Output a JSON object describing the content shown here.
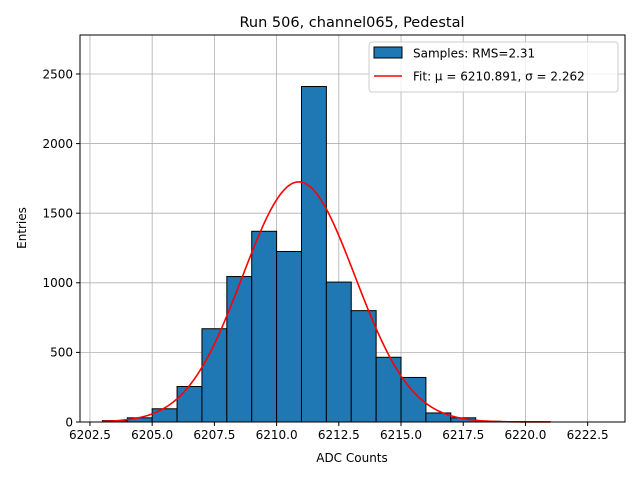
{
  "chart_data": {
    "type": "bar",
    "title": "Run 506, channel065, Pedestal",
    "xlabel": "ADC Counts",
    "ylabel": "Entries",
    "xlim": [
      6202.1,
      6224.0
    ],
    "ylim": [
      0,
      2780
    ],
    "xticks": [
      6202.5,
      6205.0,
      6207.5,
      6210.0,
      6212.5,
      6215.0,
      6217.5,
      6220.0,
      6222.5
    ],
    "xtick_labels": [
      "6202.5",
      "6205.0",
      "6207.5",
      "6210.0",
      "6212.5",
      "6215.0",
      "6217.5",
      "6220.0",
      "6222.5"
    ],
    "yticks": [
      0,
      500,
      1000,
      1500,
      2000,
      2500
    ],
    "ytick_labels": [
      "0",
      "500",
      "1000",
      "1500",
      "2000",
      "2500"
    ],
    "grid": true,
    "legend_position": "top-right",
    "histogram": {
      "name": "Samples: RMS=2.31",
      "color": "#1f77b4",
      "edgecolor": "#000000",
      "bins": [
        {
          "x0": 6203,
          "x1": 6204,
          "count": 10
        },
        {
          "x0": 6204,
          "x1": 6205,
          "count": 30
        },
        {
          "x0": 6205,
          "x1": 6206,
          "count": 95
        },
        {
          "x0": 6206,
          "x1": 6207,
          "count": 255
        },
        {
          "x0": 6207,
          "x1": 6208,
          "count": 670
        },
        {
          "x0": 6208,
          "x1": 6209,
          "count": 1045
        },
        {
          "x0": 6209,
          "x1": 6210,
          "count": 1370
        },
        {
          "x0": 6210,
          "x1": 6211,
          "count": 1225
        },
        {
          "x0": 6211,
          "x1": 6212,
          "count": 2410
        },
        {
          "x0": 6212,
          "x1": 6213,
          "count": 1005
        },
        {
          "x0": 6213,
          "x1": 6214,
          "count": 800
        },
        {
          "x0": 6214,
          "x1": 6215,
          "count": 465
        },
        {
          "x0": 6215,
          "x1": 6216,
          "count": 320
        },
        {
          "x0": 6216,
          "x1": 6217,
          "count": 65
        },
        {
          "x0": 6217,
          "x1": 6218,
          "count": 30
        },
        {
          "x0": 6218,
          "x1": 6219,
          "count": 5
        },
        {
          "x0": 6219,
          "x1": 6220,
          "count": 3
        },
        {
          "x0": 6220,
          "x1": 6221,
          "count": 2
        }
      ]
    },
    "fit": {
      "name": "Fit: μ = 6210.891, σ = 2.262",
      "color": "#ff0000",
      "mu": 6210.891,
      "sigma": 2.262,
      "amplitude": 1725,
      "x_range": [
        6203,
        6221
      ]
    }
  }
}
